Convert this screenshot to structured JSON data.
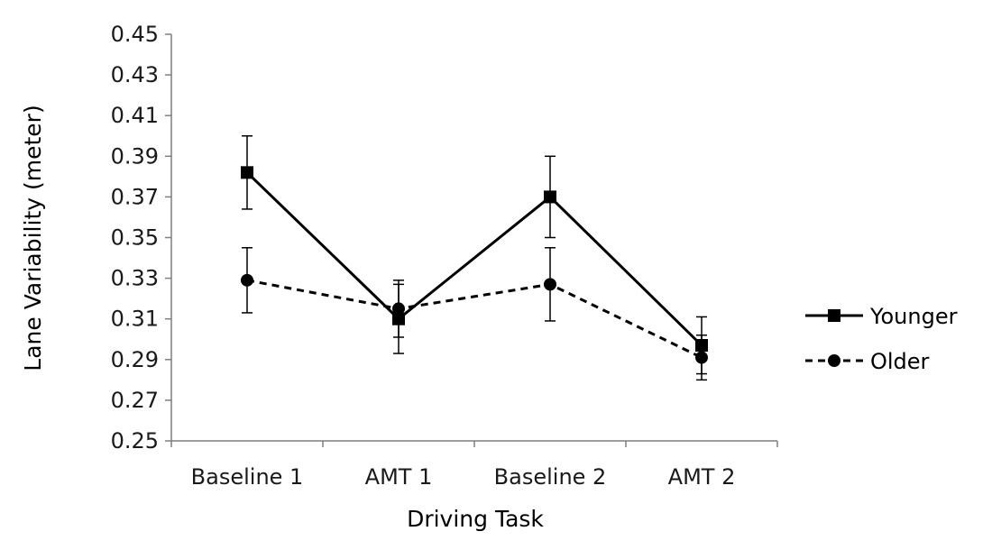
{
  "chart_data": {
    "type": "line",
    "categories": [
      "Baseline 1",
      "AMT 1",
      "Baseline 2",
      "AMT 2"
    ],
    "series": [
      {
        "name": "Younger",
        "values": [
          0.382,
          0.31,
          0.37,
          0.297
        ],
        "error": [
          0.018,
          0.017,
          0.02,
          0.014
        ],
        "line_style": "solid",
        "marker": "square",
        "color": "#000000"
      },
      {
        "name": "Older",
        "values": [
          0.329,
          0.315,
          0.327,
          0.291
        ],
        "error": [
          0.016,
          0.014,
          0.018,
          0.011
        ],
        "line_style": "dashed",
        "marker": "circle",
        "color": "#000000"
      }
    ],
    "xlabel": "Driving Task",
    "ylabel": "Lane Variability (meter)",
    "ylim": [
      0.25,
      0.45
    ],
    "yticks": [
      "0.25",
      "0.27",
      "0.29",
      "0.31",
      "0.33",
      "0.35",
      "0.37",
      "0.39",
      "0.41",
      "0.43",
      "0.45"
    ],
    "grid": false,
    "legend_position": "right"
  }
}
